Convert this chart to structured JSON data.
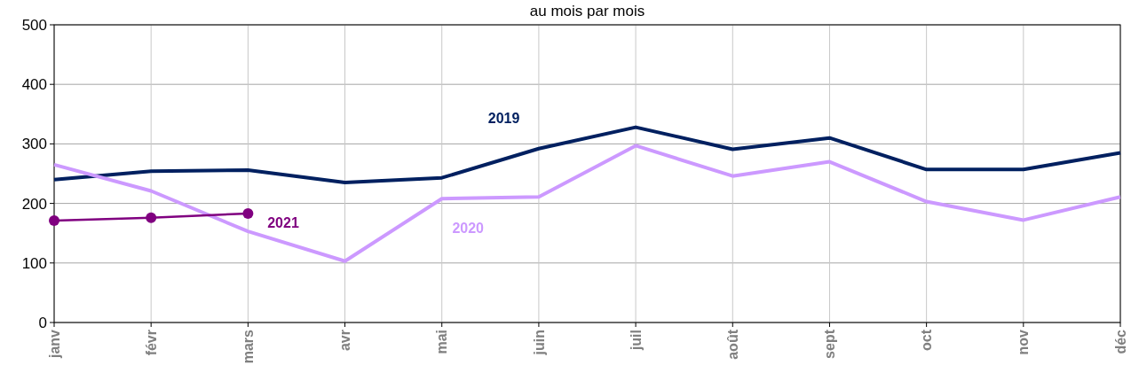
{
  "chart_data": {
    "type": "line",
    "title": "au mois par mois",
    "categories": [
      "janv",
      "févr",
      "mars",
      "avr",
      "mai",
      "juin",
      "juil",
      "août",
      "sept",
      "oct",
      "nov",
      "déc"
    ],
    "series": [
      {
        "name": "2019",
        "color": "#002060",
        "marker": "none",
        "values": [
          240,
          254,
          256,
          235,
          243,
          292,
          328,
          291,
          310,
          257,
          257,
          285
        ]
      },
      {
        "name": "2020",
        "color": "#cc99ff",
        "marker": "none",
        "values": [
          265,
          221,
          153,
          103,
          208,
          211,
          297,
          246,
          270,
          203,
          172,
          211
        ]
      },
      {
        "name": "2021",
        "color": "#800080",
        "marker": "circle",
        "values": [
          171,
          176,
          183,
          null,
          null,
          null,
          null,
          null,
          null,
          null,
          null,
          null
        ]
      }
    ],
    "ylim": [
      0,
      500
    ],
    "yticks": [
      0,
      100,
      200,
      300,
      400,
      500
    ],
    "grid": true
  }
}
